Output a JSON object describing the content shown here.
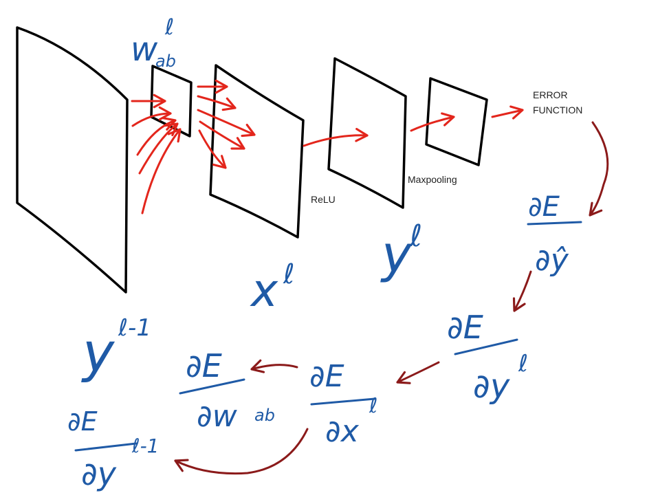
{
  "colors": {
    "ink_black": "#000000",
    "ink_blue": "#1f5aa6",
    "forward_red": "#e3261c",
    "backward_darkred": "#8b1a1a",
    "print_text": "#222222"
  },
  "printed_labels": {
    "relu": "ReLU",
    "maxpooling": "Maxpooling",
    "error_line1": "ERROR",
    "error_line2": "FUNCTION"
  },
  "handwritten": {
    "weights": "w",
    "weights_sub": "ab",
    "weights_sup": "ℓ",
    "y_prev": "y",
    "y_prev_sup": "ℓ-1",
    "x_l": "x",
    "x_l_sup": "ℓ",
    "y_l": "y",
    "y_l_sup": "ℓ"
  },
  "gradients": {
    "dE_dyhat": {
      "num": "∂E",
      "den": "∂ŷ"
    },
    "dE_dyl": {
      "num": "∂E",
      "den": "∂y",
      "den_sup": "ℓ"
    },
    "dE_dxl": {
      "num": "∂E",
      "den": "∂x",
      "den_sup": "ℓ"
    },
    "dE_dwab": {
      "num": "∂E",
      "den": "∂w",
      "den_sub": "ab"
    },
    "dE_dyprev": {
      "num": "∂E",
      "den": "∂y",
      "den_sup": "ℓ-1"
    }
  }
}
